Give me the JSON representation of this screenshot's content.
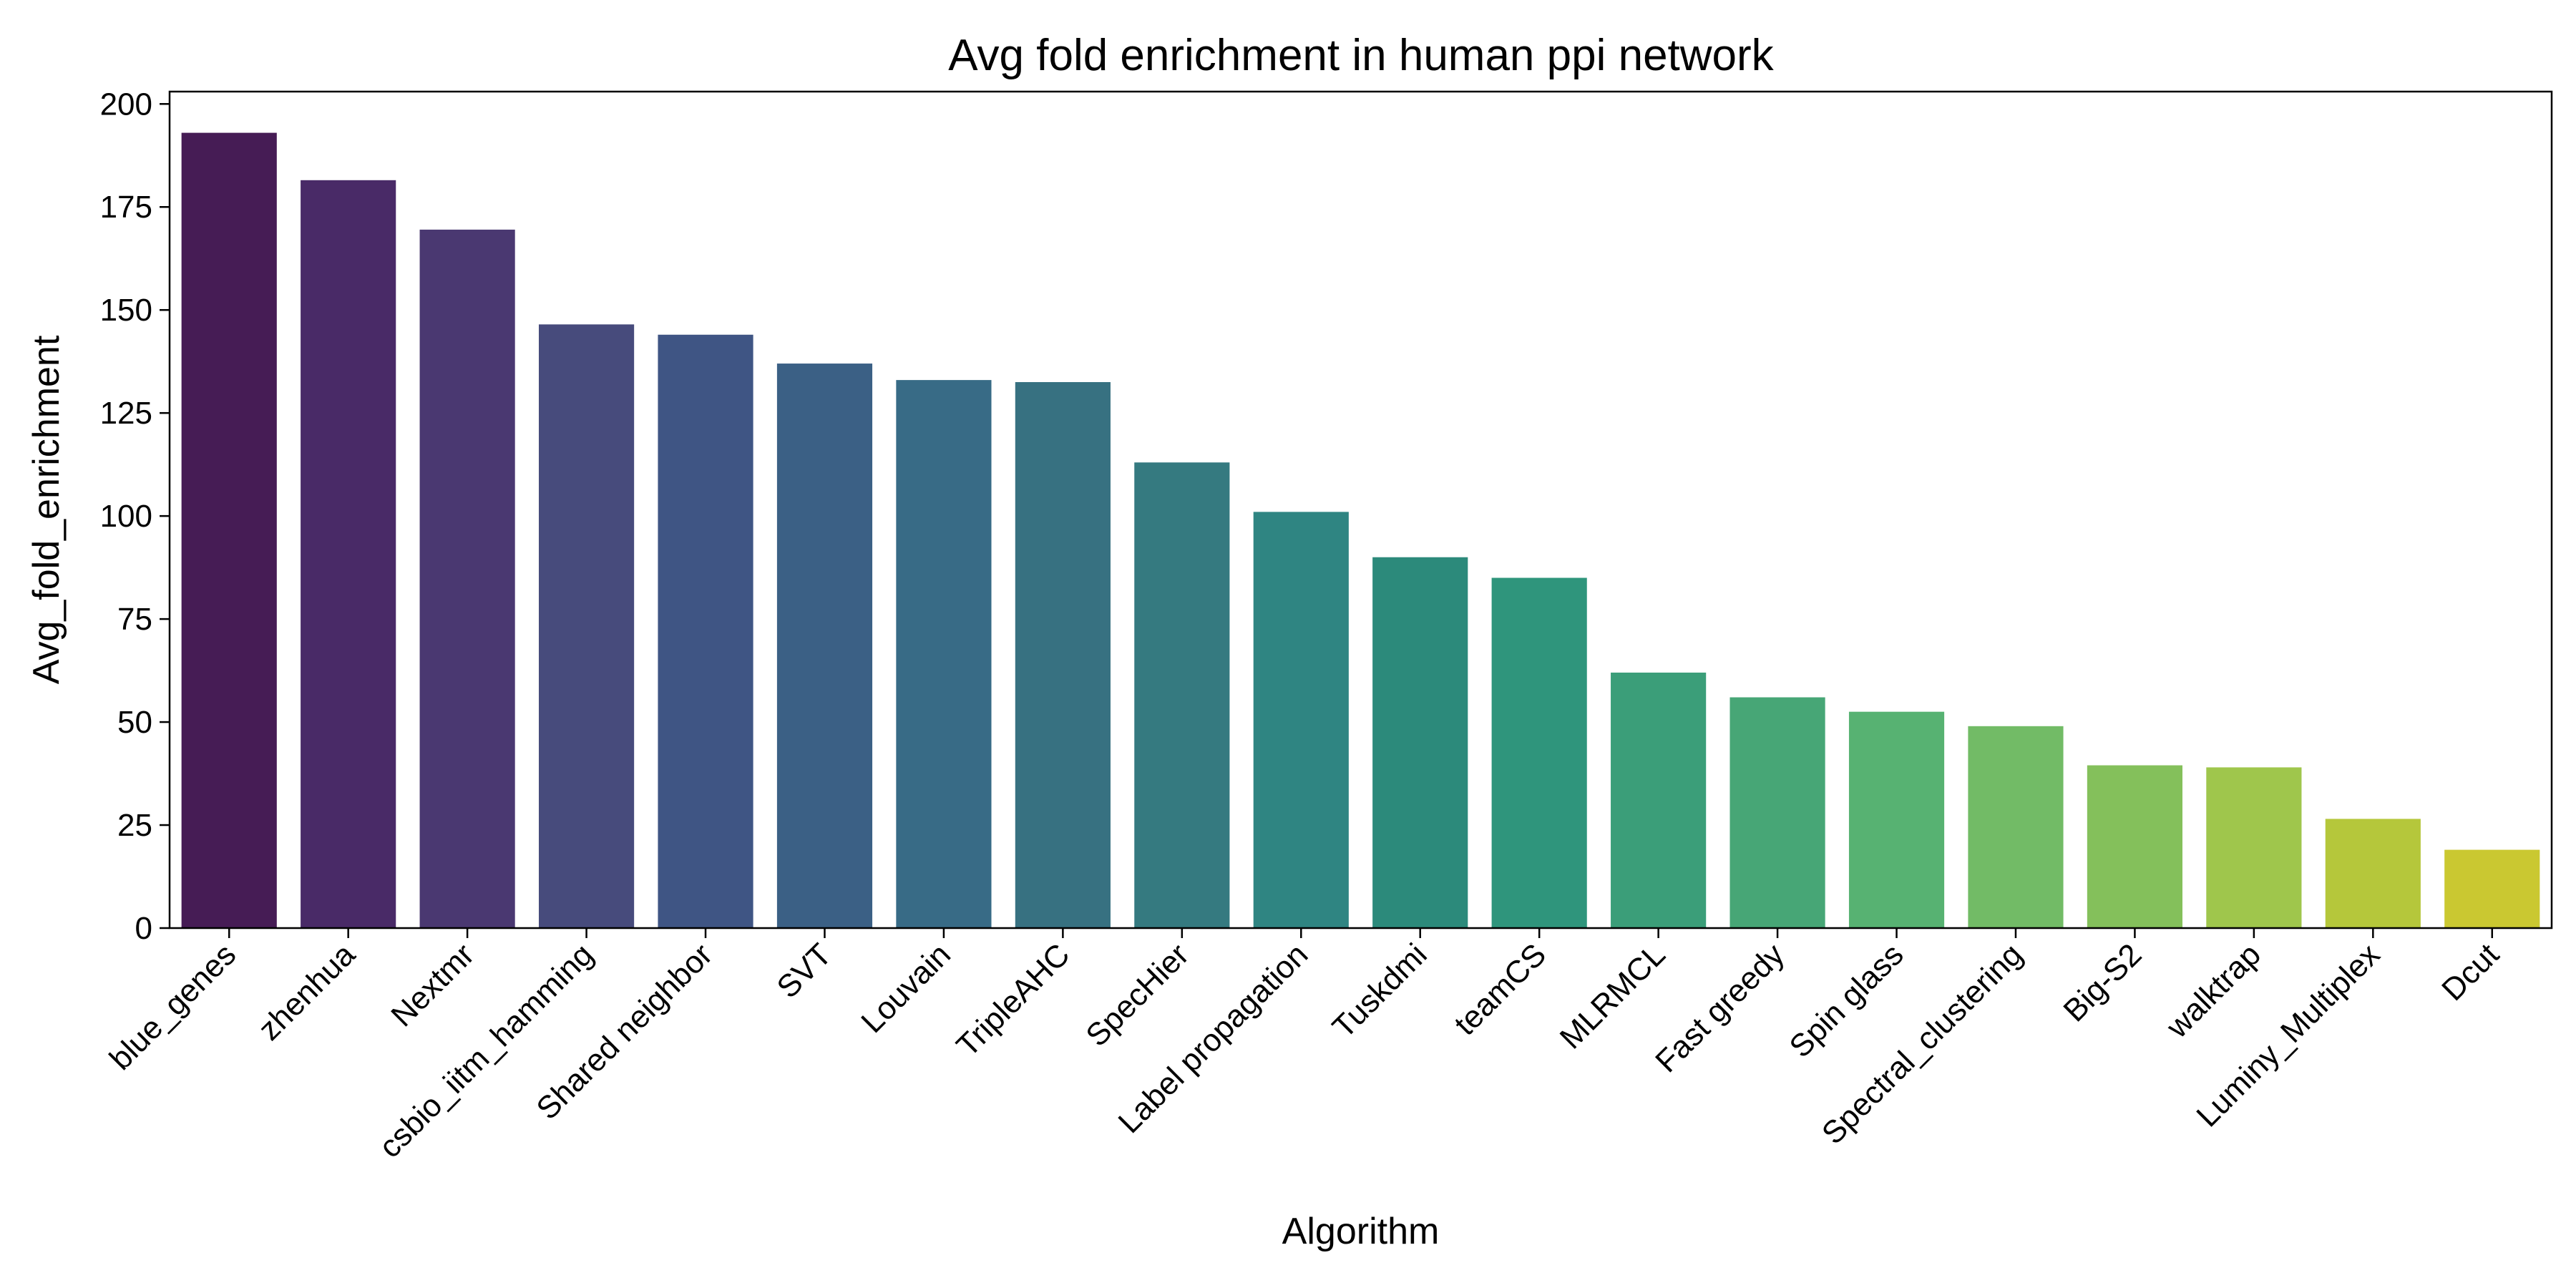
{
  "chart_data": {
    "type": "bar",
    "title": "Avg fold enrichment in human ppi network",
    "xlabel": "Algorithm",
    "ylabel": "Avg_fold_enrichment",
    "ylim": [
      0,
      203
    ],
    "yticks": [
      0,
      25,
      50,
      75,
      100,
      125,
      150,
      175,
      200
    ],
    "grid": false,
    "legend": "none",
    "categories": [
      "blue_genes",
      "zhenhua",
      "Nextmr",
      "csbio_iitm_hamming",
      "Shared neighbor",
      "SVT",
      "Louvain",
      "TripleAHC",
      "SpecHier",
      "Label propagation",
      "Tuskdmi",
      "teamCS",
      "MLRMCL",
      "Fast greedy",
      "Spin glass",
      "Spectral_clustering",
      "Big-S2",
      "walktrap",
      "Luminy_Multiplex",
      "Dcut"
    ],
    "values": [
      193,
      181.5,
      169.5,
      146.5,
      144,
      137,
      133,
      132.5,
      113,
      101,
      90,
      85,
      62,
      56,
      52.5,
      49,
      39.5,
      39,
      26.5,
      19
    ],
    "colors": [
      "#461c55",
      "#492a67",
      "#4a3871",
      "#474b7c",
      "#3f5584",
      "#3b6085",
      "#386b86",
      "#377181",
      "#357a80",
      "#2f8582",
      "#2c8a7b",
      "#2f957c",
      "#3b9e79",
      "#47a676",
      "#57b272",
      "#72bb66",
      "#84c05b",
      "#9fc64c",
      "#b5c73b",
      "#cac831"
    ]
  }
}
